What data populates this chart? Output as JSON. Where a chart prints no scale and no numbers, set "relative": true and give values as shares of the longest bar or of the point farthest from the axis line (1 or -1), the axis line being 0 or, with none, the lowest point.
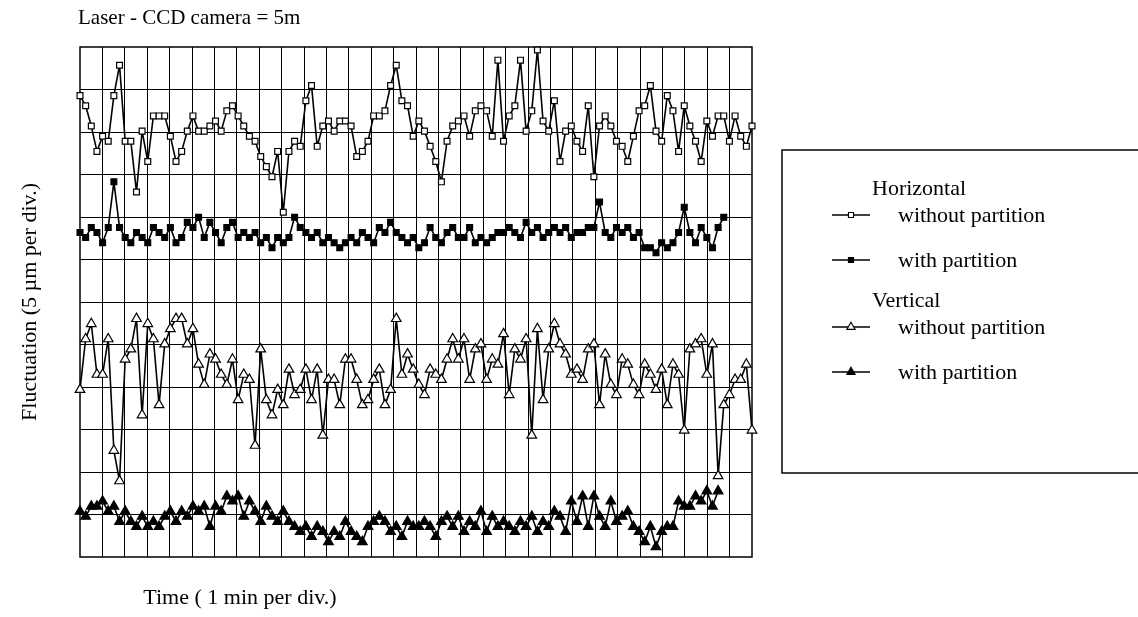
{
  "chart_data": {
    "type": "line",
    "title": "Laser - CCD camera = 5m",
    "xlabel": "Time ( 1 min per div.)",
    "ylabel": "Fluctuation (5 µm per div.)",
    "relative": true,
    "grid": true,
    "legend": "right",
    "annotations": [
      "Horizontal",
      "Vertical"
    ],
    "categories": [
      null,
      null,
      null,
      null,
      null,
      null,
      null,
      null,
      null,
      null,
      null,
      null,
      null,
      null,
      null,
      null,
      null,
      null,
      null,
      null,
      null,
      null,
      null,
      null,
      null,
      null,
      null,
      null,
      null,
      null,
      null,
      null,
      null,
      null,
      null,
      null,
      null,
      null,
      null,
      null,
      null,
      null,
      null,
      null,
      null,
      null,
      null,
      null,
      null,
      null,
      null,
      null,
      null,
      null,
      null,
      null,
      null,
      null,
      null,
      null,
      null,
      null,
      null,
      null,
      null,
      null,
      null,
      null,
      null,
      null,
      null,
      null,
      null,
      null,
      null,
      null,
      null,
      null,
      null,
      null,
      null,
      null,
      null,
      null,
      null,
      null,
      null,
      null,
      null,
      null,
      null,
      null,
      null,
      null,
      null,
      null,
      null,
      null,
      null,
      null,
      null,
      null,
      null,
      null,
      null,
      null,
      null,
      null,
      null,
      null,
      null,
      null,
      null,
      null,
      null,
      null,
      null,
      null,
      null,
      null
    ],
    "series": [
      {
        "name": "without partition",
        "color": "#000000",
        "marker": "square",
        "values": [
          0.91,
          0.89,
          0.85,
          0.8,
          0.83,
          0.82,
          0.91,
          0.97,
          0.82,
          0.82,
          0.72,
          0.84,
          0.78,
          0.87,
          0.87,
          0.87,
          0.83,
          0.78,
          0.8,
          0.84,
          0.87,
          0.84,
          0.84,
          0.85,
          0.86,
          0.84,
          0.88,
          0.89,
          0.87,
          0.85,
          0.83,
          0.82,
          0.79,
          0.77,
          0.75,
          0.8,
          0.68,
          0.8,
          0.82,
          0.81,
          0.9,
          0.93,
          0.81,
          0.85,
          0.86,
          0.84,
          0.86,
          0.86,
          0.85,
          0.79,
          0.8,
          0.82,
          0.87,
          0.87,
          0.88,
          0.93,
          0.97,
          0.9,
          0.89,
          0.83,
          0.86,
          0.84,
          0.81,
          0.78,
          0.74,
          0.82,
          0.85,
          0.86,
          0.87,
          0.83,
          0.88,
          0.89,
          0.88,
          0.83,
          0.98,
          0.82,
          0.87,
          0.89,
          0.98,
          0.84,
          0.88,
          1,
          0.86,
          0.84,
          0.9,
          0.78,
          0.84,
          0.85,
          0.82,
          0.8,
          0.89,
          0.75,
          0.85,
          0.87,
          0.85,
          0.82,
          0.81,
          0.78,
          0.83,
          0.88,
          0.89,
          0.93,
          0.84,
          0.82,
          0.91,
          0.88,
          0.8,
          0.89,
          0.85,
          0.82,
          0.78,
          0.86,
          0.83,
          0.87,
          0.87,
          0.82,
          0.87,
          0.83,
          0.81,
          0.85
        ]
      },
      {
        "name": "with partition",
        "color": "#000000",
        "marker": "square",
        "values": [
          0.64,
          0.63,
          0.65,
          0.64,
          0.62,
          0.65,
          0.74,
          0.65,
          0.63,
          0.62,
          0.64,
          0.63,
          0.62,
          0.65,
          0.64,
          0.63,
          0.65,
          0.62,
          0.63,
          0.66,
          0.65,
          0.67,
          0.63,
          0.66,
          0.64,
          0.62,
          0.65,
          0.66,
          0.63,
          0.64,
          0.63,
          0.64,
          0.62,
          0.63,
          0.61,
          0.63,
          0.62,
          0.63,
          0.67,
          0.65,
          0.64,
          0.63,
          0.64,
          0.62,
          0.63,
          0.62,
          0.61,
          0.62,
          0.63,
          0.62,
          0.64,
          0.63,
          0.62,
          0.65,
          0.64,
          0.66,
          0.64,
          0.63,
          0.62,
          0.63,
          0.61,
          0.62,
          0.65,
          0.63,
          0.62,
          0.64,
          0.65,
          0.63,
          0.63,
          0.65,
          0.62,
          0.63,
          0.62,
          0.63,
          0.64,
          0.64,
          0.65,
          0.64,
          0.63,
          0.66,
          0.64,
          0.65,
          0.63,
          0.64,
          0.65,
          0.64,
          0.65,
          0.63,
          0.64,
          0.64,
          0.65,
          0.65,
          0.7,
          0.64,
          0.63,
          0.65,
          0.64,
          0.65,
          0.63,
          0.64,
          0.61,
          0.61,
          0.6,
          0.62,
          0.61,
          0.62,
          0.64,
          0.69,
          0.64,
          0.62,
          0.65,
          0.63,
          0.61,
          0.65,
          0.67,
          null,
          null,
          null,
          null,
          null
        ]
      },
      {
        "name": "without partition",
        "color": "#000000",
        "marker": "triangle",
        "values": [
          0.33,
          0.43,
          0.46,
          0.36,
          0.36,
          0.43,
          0.21,
          0.15,
          0.39,
          0.41,
          0.47,
          0.28,
          0.46,
          0.43,
          0.3,
          0.42,
          0.45,
          0.47,
          0.47,
          0.42,
          0.45,
          0.38,
          0.34,
          0.4,
          0.39,
          0.36,
          0.34,
          0.39,
          0.31,
          0.36,
          0.35,
          0.22,
          0.41,
          0.31,
          0.28,
          0.33,
          0.3,
          0.37,
          0.32,
          0.33,
          0.37,
          0.31,
          0.37,
          0.24,
          0.35,
          0.35,
          0.3,
          0.39,
          0.39,
          0.35,
          0.3,
          0.31,
          0.35,
          0.37,
          0.3,
          0.33,
          0.47,
          0.36,
          0.4,
          0.37,
          0.34,
          0.32,
          0.37,
          0.36,
          0.35,
          0.39,
          0.43,
          0.39,
          0.43,
          0.35,
          0.41,
          0.42,
          0.35,
          0.39,
          0.38,
          0.44,
          0.32,
          0.41,
          0.39,
          0.43,
          0.24,
          0.45,
          0.31,
          0.41,
          0.46,
          0.42,
          0.4,
          0.36,
          0.37,
          0.35,
          0.41,
          0.42,
          0.3,
          0.4,
          0.34,
          0.32,
          0.39,
          0.38,
          0.34,
          0.32,
          0.38,
          0.36,
          0.33,
          0.37,
          0.3,
          0.38,
          0.36,
          0.25,
          0.41,
          0.42,
          0.43,
          0.36,
          0.42,
          0.16,
          0.3,
          0.32,
          0.35,
          0.35,
          0.38,
          0.25
        ]
      },
      {
        "name": "with partition",
        "color": "#000000",
        "marker": "triangle",
        "values": [
          0.09,
          0.08,
          0.1,
          0.1,
          0.11,
          0.09,
          0.1,
          0.07,
          0.09,
          0.07,
          0.06,
          0.08,
          0.06,
          0.07,
          0.06,
          0.08,
          0.09,
          0.07,
          0.09,
          0.08,
          0.1,
          0.09,
          0.1,
          0.06,
          0.1,
          0.09,
          0.12,
          0.11,
          0.12,
          0.08,
          0.11,
          0.09,
          0.07,
          0.1,
          0.08,
          0.07,
          0.09,
          0.07,
          0.06,
          0.05,
          0.06,
          0.04,
          0.06,
          0.05,
          0.03,
          0.05,
          0.04,
          0.07,
          0.05,
          0.04,
          0.03,
          0.06,
          0.07,
          0.08,
          0.07,
          0.05,
          0.06,
          0.04,
          0.07,
          0.06,
          0.06,
          0.07,
          0.06,
          0.04,
          0.07,
          0.08,
          0.06,
          0.08,
          0.05,
          0.07,
          0.06,
          0.09,
          0.05,
          0.08,
          0.06,
          0.07,
          0.06,
          0.05,
          0.07,
          0.06,
          0.08,
          0.05,
          0.07,
          0.06,
          0.09,
          0.08,
          0.05,
          0.11,
          0.07,
          0.12,
          0.06,
          0.12,
          0.08,
          0.06,
          0.11,
          0.07,
          0.08,
          0.09,
          0.06,
          0.05,
          0.03,
          0.06,
          0.02,
          0.05,
          0.06,
          0.06,
          0.11,
          0.1,
          0.1,
          0.12,
          0.11,
          0.13,
          0.1,
          0.13,
          null,
          null,
          null,
          null,
          null,
          null
        ]
      }
    ]
  }
}
